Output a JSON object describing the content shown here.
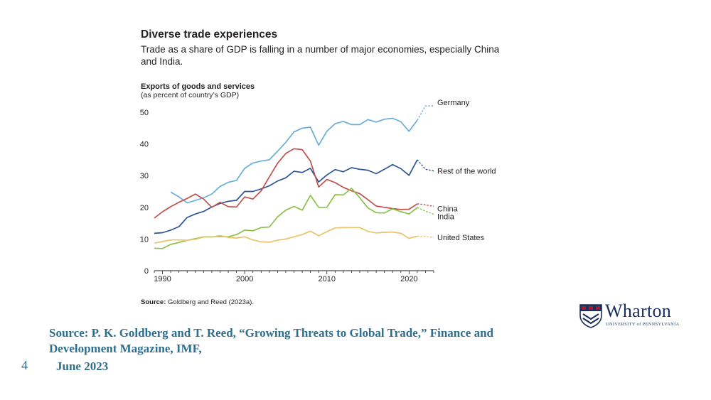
{
  "chart_data": {
    "type": "line",
    "title": "Diverse trade experiences",
    "subtitle": "Trade as a share of GDP is falling in a number of major economies, especially China and India.",
    "ylabel": "Exports of goods and services",
    "ylabel_sub": "(as percent of country’s GDP)",
    "xlabel": "",
    "xlim": [
      1989,
      2023
    ],
    "ylim": [
      0,
      50
    ],
    "yticks": [
      0,
      10,
      20,
      30,
      40,
      50
    ],
    "xticks": [
      1990,
      2000,
      2010,
      2020
    ],
    "grid": false,
    "source_label": "Source:",
    "source_text": "Goldberg and Reed (2023a).",
    "series": [
      {
        "name": "Germany",
        "color": "#6aaed6",
        "x": [
          1991,
          1992,
          1993,
          1994,
          1995,
          1996,
          1997,
          1998,
          1999,
          2000,
          2001,
          2002,
          2003,
          2004,
          2005,
          2006,
          2007,
          2008,
          2009,
          2010,
          2011,
          2012,
          2013,
          2014,
          2015,
          2016,
          2017,
          2018,
          2019,
          2020,
          2021
        ],
        "values": [
          24.8,
          23.3,
          21.4,
          22.2,
          23.0,
          24.2,
          26.6,
          27.9,
          28.5,
          32.3,
          34.0,
          34.6,
          35.0,
          37.7,
          40.5,
          43.8,
          45.0,
          45.3,
          39.6,
          44.0,
          46.4,
          47.1,
          46.1,
          46.1,
          47.7,
          46.9,
          47.8,
          48.1,
          47.0,
          44.0,
          47.5
        ],
        "projection": [
          [
            2021,
            47.5
          ],
          [
            2022,
            52.0
          ],
          [
            2023,
            52.0
          ]
        ]
      },
      {
        "name": "Rest of the world",
        "color": "#2d5596",
        "x": [
          1989,
          1990,
          1991,
          1992,
          1993,
          1994,
          1995,
          1996,
          1997,
          1998,
          1999,
          2000,
          2001,
          2002,
          2003,
          2004,
          2005,
          2006,
          2007,
          2008,
          2009,
          2010,
          2011,
          2012,
          2013,
          2014,
          2015,
          2016,
          2017,
          2018,
          2019,
          2020,
          2021
        ],
        "values": [
          11.8,
          12.0,
          12.8,
          13.9,
          16.8,
          17.9,
          18.7,
          20.1,
          21.2,
          21.9,
          22.2,
          25.0,
          25.0,
          25.8,
          26.8,
          28.3,
          29.3,
          31.4,
          31.0,
          32.3,
          28.0,
          30.2,
          31.9,
          31.2,
          32.5,
          32.0,
          31.7,
          30.6,
          32.0,
          33.5,
          32.2,
          30.1,
          35.0
        ],
        "projection": [
          [
            2021,
            35.0
          ],
          [
            2022,
            32.0
          ],
          [
            2023,
            31.5
          ]
        ]
      },
      {
        "name": "China",
        "color": "#c0504d",
        "x": [
          1989,
          1990,
          1991,
          1992,
          1993,
          1994,
          1995,
          1996,
          1997,
          1998,
          1999,
          2000,
          2001,
          2002,
          2003,
          2004,
          2005,
          2006,
          2007,
          2008,
          2009,
          2010,
          2011,
          2012,
          2013,
          2014,
          2015,
          2016,
          2017,
          2018,
          2019,
          2020,
          2021
        ],
        "values": [
          16.6,
          18.6,
          20.2,
          21.6,
          22.8,
          24.2,
          22.6,
          20.0,
          21.6,
          20.2,
          20.1,
          23.3,
          22.6,
          25.2,
          29.6,
          33.9,
          37.0,
          38.5,
          38.2,
          34.6,
          26.4,
          28.8,
          27.8,
          26.3,
          25.2,
          24.3,
          22.4,
          20.4,
          20.0,
          19.6,
          19.3,
          19.4,
          21.1
        ],
        "projection": [
          [
            2021,
            21.1
          ],
          [
            2022,
            20.8
          ],
          [
            2023,
            20.3
          ]
        ]
      },
      {
        "name": "India",
        "color": "#8cc04c",
        "x": [
          1989,
          1990,
          1991,
          1992,
          1993,
          1994,
          1995,
          1996,
          1997,
          1998,
          1999,
          2000,
          2001,
          2002,
          2003,
          2004,
          2005,
          2006,
          2007,
          2008,
          2009,
          2010,
          2011,
          2012,
          2013,
          2014,
          2015,
          2016,
          2017,
          2018,
          2019,
          2020,
          2021
        ],
        "values": [
          7.1,
          7.0,
          8.3,
          8.9,
          9.6,
          10.1,
          10.7,
          10.7,
          10.8,
          10.7,
          11.4,
          12.8,
          12.6,
          13.6,
          13.8,
          17.0,
          19.1,
          20.3,
          19.1,
          23.8,
          20.0,
          20.0,
          24.0,
          23.9,
          26.0,
          23.0,
          19.8,
          18.3,
          18.2,
          19.5,
          18.6,
          17.9,
          19.9
        ],
        "projection": [
          [
            2021,
            19.9
          ],
          [
            2022,
            18.8
          ],
          [
            2023,
            17.8
          ]
        ]
      },
      {
        "name": "United States",
        "color": "#e9c46a",
        "x": [
          1989,
          1990,
          1991,
          1992,
          1993,
          1994,
          1995,
          1996,
          1997,
          1998,
          1999,
          2000,
          2001,
          2002,
          2003,
          2004,
          2005,
          2006,
          2007,
          2008,
          2009,
          2010,
          2011,
          2012,
          2013,
          2014,
          2015,
          2016,
          2017,
          2018,
          2019,
          2020,
          2021
        ],
        "values": [
          8.7,
          9.2,
          9.7,
          9.7,
          9.6,
          9.9,
          10.6,
          10.6,
          11.1,
          10.5,
          10.3,
          10.7,
          9.7,
          9.1,
          9.0,
          9.6,
          10.0,
          10.7,
          11.4,
          12.5,
          11.0,
          12.3,
          13.5,
          13.6,
          13.6,
          13.6,
          12.4,
          11.9,
          12.1,
          12.2,
          11.8,
          10.2,
          10.9
        ],
        "projection": [
          [
            2021,
            10.9
          ],
          [
            2022,
            10.8
          ],
          [
            2023,
            10.5
          ]
        ]
      }
    ]
  },
  "slide": {
    "source_line": "Source: P. K. Goldberg and T. Reed, “Growing Threats to Global Trade,” Finance and Development Magazine, IMF,",
    "date": "June 2023",
    "page_number": "4"
  },
  "logo": {
    "name": "Wharton",
    "subtitle": "UNIVERSITY of PENNSYLVANIA"
  }
}
